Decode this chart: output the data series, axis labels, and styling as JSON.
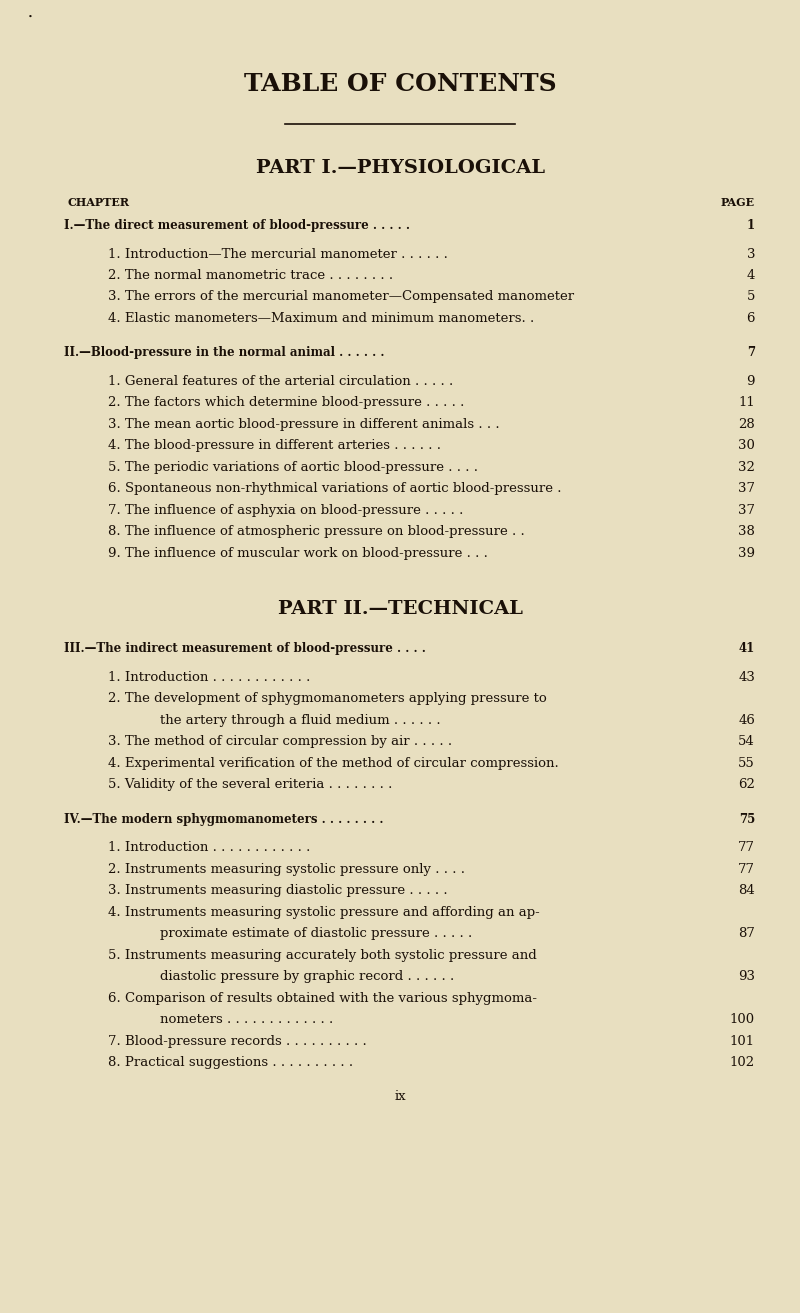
{
  "bg_color": "#e8dfc0",
  "text_color": "#1a1008",
  "title": "TABLE OF CONTENTS",
  "part1_title": "PART I.—PHYSIOLOGICAL",
  "part2_title": "PART II.—TECHNICAL",
  "chapter_label": "CHAPTER",
  "page_label": "PAGE",
  "page_num": "ix",
  "fig_width": 8.0,
  "fig_height": 13.13,
  "dpi": 100,
  "lines": [
    {
      "text": "I.—The direct measurement of blood-pressure . . . . .",
      "page": "1",
      "indent": 0,
      "style": "smallcaps_chapter"
    },
    {
      "text": "1. Introduction—The mercurial manometer . . . . . .",
      "page": "3",
      "indent": 1,
      "style": "normal"
    },
    {
      "text": "2. The normal manometric trace . . . . . . . .",
      "page": "4",
      "indent": 1,
      "style": "normal"
    },
    {
      "text": "3. The errors of the mercurial manometer—Compensated manometer",
      "page": "5",
      "indent": 1,
      "style": "normal"
    },
    {
      "text": "4. Elastic manometers—Maximum and minimum manometers. .",
      "page": "6",
      "indent": 1,
      "style": "normal"
    },
    {
      "text": "",
      "page": "",
      "indent": 0,
      "style": "gap"
    },
    {
      "text": "II.—Blood-pressure in the normal animal . . . . . .",
      "page": "7",
      "indent": 0,
      "style": "smallcaps_chapter"
    },
    {
      "text": "1. General features of the arterial circulation . . . . .",
      "page": "9",
      "indent": 1,
      "style": "normal"
    },
    {
      "text": "2. The factors which determine blood-pressure . . . . .",
      "page": "11",
      "indent": 1,
      "style": "normal"
    },
    {
      "text": "3. The mean aortic blood-pressure in different animals . . .",
      "page": "28",
      "indent": 1,
      "style": "normal"
    },
    {
      "text": "4. The blood-pressure in different arteries . . . . . .",
      "page": "30",
      "indent": 1,
      "style": "normal"
    },
    {
      "text": "5. The periodic variations of aortic blood-pressure . . . .",
      "page": "32",
      "indent": 1,
      "style": "normal"
    },
    {
      "text": "6. Spontaneous non-rhythmical variations of aortic blood-pressure .",
      "page": "37",
      "indent": 1,
      "style": "normal"
    },
    {
      "text": "7. The influence of asphyxia on blood-pressure . . . . .",
      "page": "37",
      "indent": 1,
      "style": "normal"
    },
    {
      "text": "8. The influence of atmospheric pressure on blood-pressure . .",
      "page": "38",
      "indent": 1,
      "style": "normal"
    },
    {
      "text": "9. The influence of muscular work on blood-pressure . . .",
      "page": "39",
      "indent": 1,
      "style": "normal"
    }
  ],
  "lines2": [
    {
      "text": "III.—The indirect measurement of blood-pressure . . . .",
      "page": "41",
      "indent": 0,
      "style": "smallcaps_chapter"
    },
    {
      "text": "1. Introduction . . . . . . . . . . . .",
      "page": "43",
      "indent": 1,
      "style": "normal"
    },
    {
      "text": "2. The development of sphygmomanometers applying pressure to",
      "page": "",
      "indent": 1,
      "style": "normal"
    },
    {
      "text": "    the artery through a fluid medium . . . . . .",
      "page": "46",
      "indent": 2,
      "style": "normal"
    },
    {
      "text": "3. The method of circular compression by air . . . . .",
      "page": "54",
      "indent": 1,
      "style": "normal"
    },
    {
      "text": "4. Experimental verification of the method of circular compression.",
      "page": "55",
      "indent": 1,
      "style": "normal"
    },
    {
      "text": "5. Validity of the several eriteria . . . . . . . .",
      "page": "62",
      "indent": 1,
      "style": "normal"
    },
    {
      "text": "",
      "page": "",
      "indent": 0,
      "style": "gap"
    },
    {
      "text": "IV.—The modern sphygmomanometers . . . . . . . .",
      "page": "75",
      "indent": 0,
      "style": "smallcaps_chapter"
    },
    {
      "text": "1. Introduction . . . . . . . . . . . .",
      "page": "77",
      "indent": 1,
      "style": "normal"
    },
    {
      "text": "2. Instruments measuring systolic pressure only . . . .",
      "page": "77",
      "indent": 1,
      "style": "normal"
    },
    {
      "text": "3. Instruments measuring diastolic pressure . . . . .",
      "page": "84",
      "indent": 1,
      "style": "normal"
    },
    {
      "text": "4. Instruments measuring systolic pressure and affording an ap-",
      "page": "",
      "indent": 1,
      "style": "normal"
    },
    {
      "text": "    proximate estimate of diastolic pressure . . . . .",
      "page": "87",
      "indent": 2,
      "style": "normal"
    },
    {
      "text": "5. Instruments measuring accurately both systolic pressure and",
      "page": "",
      "indent": 1,
      "style": "normal"
    },
    {
      "text": "    diastolic pressure by graphic record . . . . . .",
      "page": "93",
      "indent": 2,
      "style": "normal"
    },
    {
      "text": "6. Comparison of results obtained with the various sphygmoma-",
      "page": "",
      "indent": 1,
      "style": "normal"
    },
    {
      "text": "    nometers . . . . . . . . . . . . .",
      "page": "100",
      "indent": 2,
      "style": "normal"
    },
    {
      "text": "7. Blood-pressure records . . . . . . . . . .",
      "page": "101",
      "indent": 1,
      "style": "normal"
    },
    {
      "text": "8. Practical suggestions . . . . . . . . . .",
      "page": "102",
      "indent": 1,
      "style": "normal"
    }
  ]
}
